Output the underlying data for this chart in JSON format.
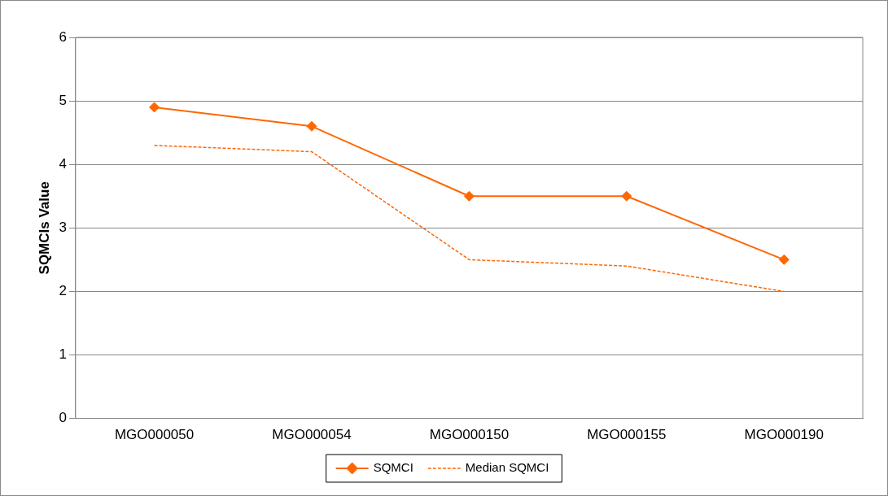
{
  "chart_data": {
    "type": "line",
    "ylabel": "SQMCIs Value",
    "categories": [
      "MGO000050",
      "MGO000054",
      "MGO000150",
      "MGO000155",
      "MGO000190"
    ],
    "series": [
      {
        "name": "SQMCI",
        "color": "#ff6600",
        "values": [
          4.9,
          4.6,
          3.5,
          3.5,
          2.5
        ],
        "marker": "diamond",
        "line_style": "solid"
      },
      {
        "name": "Median SQMCI",
        "color": "#ff6600",
        "values": [
          4.3,
          4.2,
          2.5,
          2.4,
          2.0
        ],
        "marker": "none",
        "line_style": "dashed"
      }
    ],
    "ylim": [
      0,
      6
    ],
    "yticks": [
      0,
      1,
      2,
      3,
      4,
      5,
      6
    ],
    "grid": "y",
    "legend": "bottom"
  }
}
